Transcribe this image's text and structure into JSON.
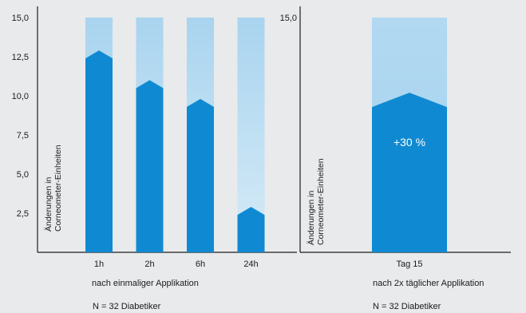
{
  "chart_data": [
    {
      "type": "bar",
      "ylabel": [
        "Änderungen in",
        "Corneometer-Einheiten"
      ],
      "ylim": [
        0,
        15
      ],
      "yticks": [
        "2,5",
        "5,0",
        "7,5",
        "10,0",
        "12,5",
        "15,0"
      ],
      "categories": [
        "1h",
        "2h",
        "6h",
        "24h"
      ],
      "values": [
        12.9,
        11.0,
        9.8,
        2.9
      ],
      "xlabel": "nach einmaliger Applikation",
      "note": "N = 32 Diabetiker"
    },
    {
      "type": "bar",
      "ylabel": [
        "Änderungen in",
        "Corneometer-Einheiten"
      ],
      "ylim": [
        0,
        15
      ],
      "yticks": [
        "15,0"
      ],
      "categories": [
        "Tag 15"
      ],
      "values": [
        10.2
      ],
      "annotation": "+30 %",
      "xlabel": "nach 2x täglicher Applikation",
      "note": "N = 32 Diabetiker"
    }
  ],
  "colors": {
    "background": "#e8eaeb",
    "bar": "#0f8ad2",
    "bar_track_light": "#d3e9f6",
    "bar_track_dark": "#a9d4ef",
    "axis": "#1e1e1e"
  }
}
